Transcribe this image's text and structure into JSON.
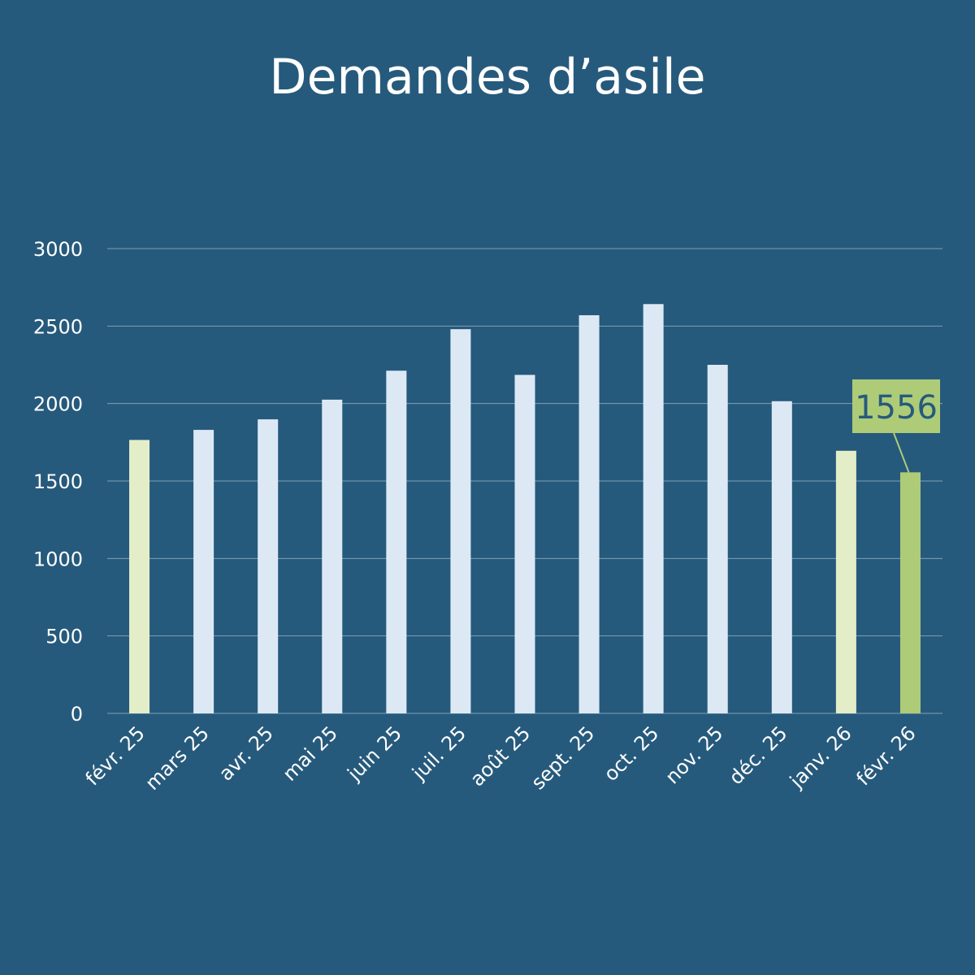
{
  "chart_data": {
    "type": "bar",
    "title": "Demandes d’asile",
    "categories": [
      "févr. 25",
      "mars 25",
      "avr. 25",
      "mai 25",
      "juin 25",
      "juil. 25",
      "août 25",
      "sept. 25",
      "oct. 25",
      "nov. 25",
      "déc. 25",
      "janv. 26",
      "févr. 26"
    ],
    "values": [
      1765,
      1830,
      1898,
      2025,
      2212,
      2480,
      2185,
      2570,
      2642,
      2250,
      2015,
      1695,
      1556
    ],
    "bar_colors": [
      "#e3eec9",
      "#dce9f5",
      "#dce9f5",
      "#dce9f5",
      "#dce9f5",
      "#dce9f5",
      "#dce9f5",
      "#dce9f5",
      "#dce9f5",
      "#dce9f5",
      "#dce9f5",
      "#e3eec9",
      "#aecb78"
    ],
    "yticks": [
      "0",
      "500",
      "1000",
      "1500",
      "2000",
      "2500",
      "3000"
    ],
    "ylim": [
      0,
      3000
    ],
    "grid": true,
    "annotation": {
      "category_index": 12,
      "text": "1556",
      "box_color": "#aecb78",
      "text_color": "#265a7c"
    },
    "background_color": "#265a7c"
  }
}
